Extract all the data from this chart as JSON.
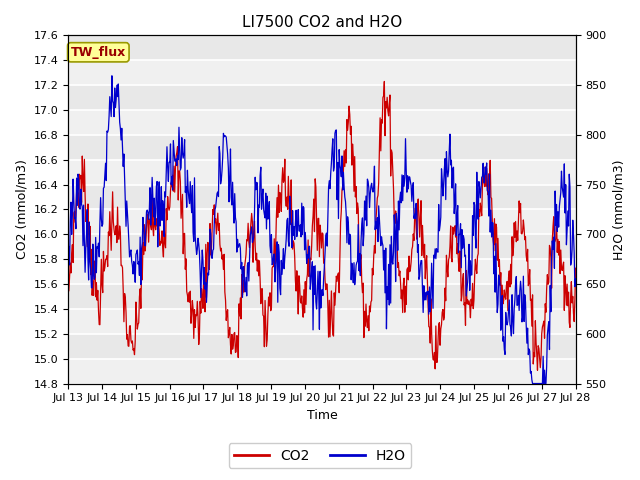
{
  "title": "LI7500 CO2 and H2O",
  "xlabel": "Time",
  "ylabel_left": "CO2 (mmol/m3)",
  "ylabel_right": "H2O (mmol/m3)",
  "ylim_left": [
    14.8,
    17.6
  ],
  "ylim_right": [
    550,
    900
  ],
  "xtick_labels": [
    "Jul 13",
    "Jul 14",
    "Jul 15",
    "Jul 16",
    "Jul 17",
    "Jul 18",
    "Jul 19",
    "Jul 20",
    "Jul 21",
    "Jul 22",
    "Jul 23",
    "Jul 24",
    "Jul 25",
    "Jul 26",
    "Jul 27",
    "Jul 28"
  ],
  "legend_label_co2": "CO2",
  "legend_label_h2o": "H2O",
  "co2_color": "#cc0000",
  "h2o_color": "#0000cc",
  "figure_bg_color": "#ffffff",
  "plot_bg_color": "#e8e8e8",
  "band_color": "#d0d0d0",
  "annotation_text": "TW_flux",
  "annotation_bg": "#ffff99",
  "annotation_border": "#999900",
  "title_fontsize": 11,
  "axis_label_fontsize": 9,
  "tick_fontsize": 8,
  "legend_fontsize": 10,
  "yticks_left": [
    14.8,
    15.0,
    15.2,
    15.4,
    15.6,
    15.8,
    16.0,
    16.2,
    16.4,
    16.6,
    16.8,
    17.0,
    17.2,
    17.4,
    17.6
  ],
  "yticks_right": [
    550,
    600,
    650,
    700,
    750,
    800,
    850,
    900
  ],
  "n_points": 720,
  "random_seed": 7
}
